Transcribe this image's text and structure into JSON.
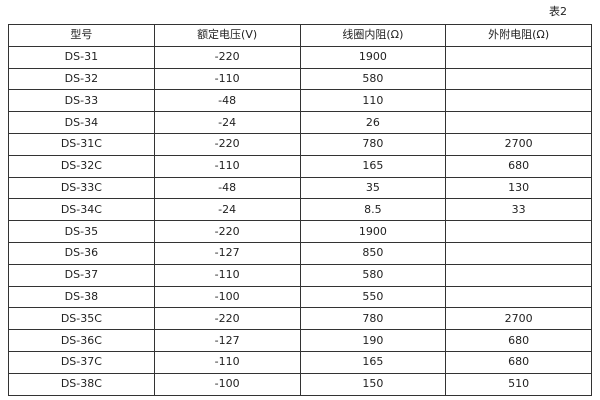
{
  "caption": "表2",
  "table": {
    "headers": [
      "型号",
      "额定电压(V)",
      "线圈内阻(Ω)",
      "外附电阻(Ω)"
    ],
    "rows": [
      [
        "DS-31",
        "-220",
        "1900",
        ""
      ],
      [
        "DS-32",
        "-110",
        "580",
        ""
      ],
      [
        "DS-33",
        "-48",
        "110",
        ""
      ],
      [
        "DS-34",
        "-24",
        "26",
        ""
      ],
      [
        "DS-31C",
        "-220",
        "780",
        "2700"
      ],
      [
        "DS-32C",
        "-110",
        "165",
        "680"
      ],
      [
        "DS-33C",
        "-48",
        "35",
        "130"
      ],
      [
        "DS-34C",
        "-24",
        "8.5",
        "33"
      ],
      [
        "DS-35",
        "-220",
        "1900",
        ""
      ],
      [
        "DS-36",
        "-127",
        "850",
        ""
      ],
      [
        "DS-37",
        "-110",
        "580",
        ""
      ],
      [
        "DS-38",
        "-100",
        "550",
        ""
      ],
      [
        "DS-35C",
        "-220",
        "780",
        "2700"
      ],
      [
        "DS-36C",
        "-127",
        "190",
        "680"
      ],
      [
        "DS-37C",
        "-110",
        "165",
        "680"
      ],
      [
        "DS-38C",
        "-100",
        "150",
        "510"
      ]
    ]
  }
}
